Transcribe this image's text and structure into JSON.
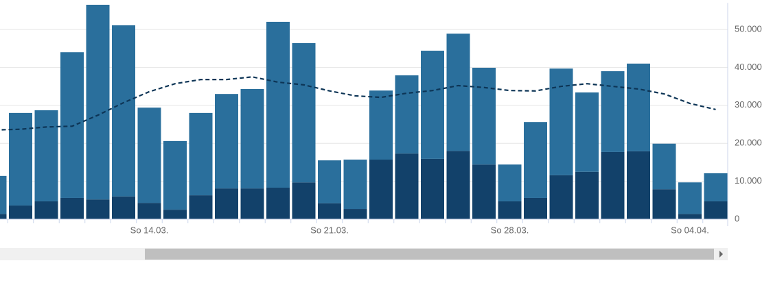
{
  "chart_data": {
    "type": "bar",
    "stacked": true,
    "categories": [
      null,
      null,
      null,
      null,
      null,
      null,
      "So 14.03.",
      null,
      null,
      null,
      null,
      null,
      null,
      "So 21.03.",
      null,
      null,
      null,
      null,
      null,
      null,
      "So 28.03.",
      null,
      null,
      null,
      null,
      null,
      null,
      "So 04.04.",
      null
    ],
    "series": [
      {
        "color": "#12416a",
        "values": [
          1400,
          3600,
          4700,
          5600,
          5200,
          6000,
          4300,
          2500,
          6300,
          8100,
          8100,
          8300,
          9700,
          4200,
          2700,
          15700,
          17300,
          15900,
          18000,
          14400,
          4700,
          5600,
          11600,
          12500,
          17700,
          17900,
          7900,
          1400,
          4700
        ]
      },
      {
        "color": "#2a6f9c",
        "values": [
          10000,
          24400,
          24000,
          38400,
          51300,
          45100,
          25100,
          18100,
          21700,
          24900,
          26200,
          43700,
          36700,
          11300,
          13000,
          18200,
          20600,
          28500,
          30900,
          25500,
          9700,
          20000,
          28100,
          20900,
          21300,
          23100,
          12000,
          8300,
          7400
        ]
      },
      {
        "type": "line",
        "color": "#0d3556",
        "dashed": true,
        "values": [
          23500,
          23700,
          24300,
          24500,
          27400,
          30700,
          33600,
          35700,
          36800,
          36800,
          37500,
          36100,
          35400,
          33800,
          32500,
          32100,
          33200,
          33900,
          35200,
          34700,
          33900,
          33800,
          35000,
          35700,
          35000,
          34300,
          33000,
          30500,
          28900
        ]
      }
    ],
    "ylim": [
      0,
      57000
    ],
    "yticks": [
      0,
      {
        "value": 10000,
        "label": "10.000"
      },
      {
        "value": 20000,
        "label": "20.000"
      },
      {
        "value": 30000,
        "label": "30.000"
      },
      {
        "value": 40000,
        "label": "40.000"
      },
      {
        "value": 50000,
        "label": "50.000"
      }
    ],
    "y_axis_side": "right",
    "grid": true
  }
}
